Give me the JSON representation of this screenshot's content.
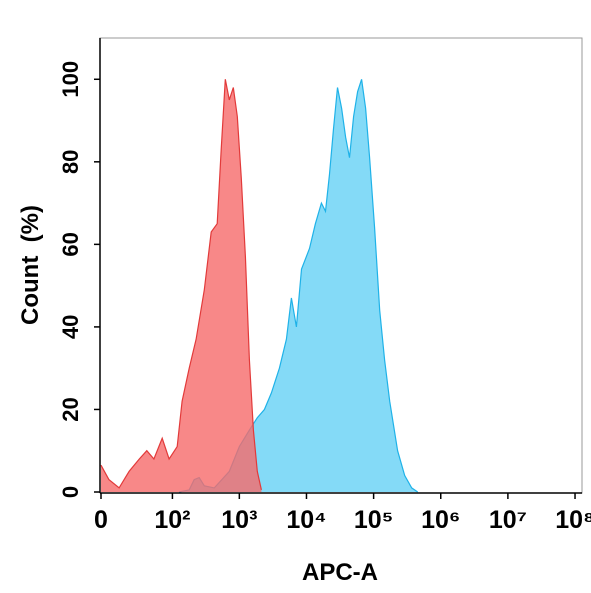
{
  "chart_data": {
    "type": "area",
    "xlabel": "APC-A",
    "ylabel": "Count  (%)",
    "xscale": "biexponential",
    "xlim": [
      0,
      127000000
    ],
    "ylim": [
      0,
      110
    ],
    "xticks": [
      0,
      {
        "value": 100,
        "label": "10²"
      },
      {
        "value": 1000,
        "label": "10³"
      },
      {
        "value": 10000,
        "label": "10⁴"
      },
      {
        "value": 100000,
        "label": "10⁵"
      },
      {
        "value": 1000000,
        "label": "10⁶"
      },
      {
        "value": 10000000,
        "label": "10⁷"
      },
      {
        "value": 100000000,
        "label": "10⁸"
      }
    ],
    "yticks": [
      0,
      20,
      40,
      60,
      80,
      100
    ],
    "series": [
      {
        "color": "#1fb2e8",
        "fill": "#6fd3f6",
        "x": [
          126,
          179,
          212,
          252,
          300,
          423,
          709,
          999,
          1410,
          1850,
          2360,
          3000,
          3950,
          5020,
          5970,
          7090,
          8420,
          11080,
          13600,
          16700,
          19200,
          22000,
          25300,
          29000,
          33300,
          38200,
          43800,
          50300,
          57700,
          66200,
          76000,
          87200,
          103600,
          123000,
          146000,
          173500,
          228000,
          290000,
          369000,
          454000
        ],
        "values": [
          0,
          0.5,
          3,
          3.5,
          1.5,
          1,
          5,
          11,
          15,
          18,
          20,
          24,
          30,
          37,
          47,
          40,
          54,
          59,
          65,
          70,
          68,
          77,
          88,
          98,
          93,
          86,
          81,
          91,
          97,
          100,
          93,
          81,
          64,
          44,
          32,
          22,
          10,
          4,
          1,
          0
        ]
      },
      {
        "color": "#e23a3a",
        "fill": "#f66a6a",
        "x": [
          0,
          4.8,
          11.5,
          19.5,
          30,
          40,
          52,
          70,
          89,
          118,
          140,
          179,
          227,
          300,
          381,
          468,
          537,
          617,
          709,
          813,
          933,
          1070,
          1230,
          1410,
          1620,
          1850,
          2130
        ],
        "values": [
          6.5,
          3,
          1,
          5,
          8,
          10,
          8,
          13,
          8,
          11,
          22,
          30,
          37,
          49,
          63,
          65,
          83,
          100,
          95,
          98,
          91,
          76,
          57,
          32,
          15,
          5,
          0.5
        ]
      }
    ]
  }
}
